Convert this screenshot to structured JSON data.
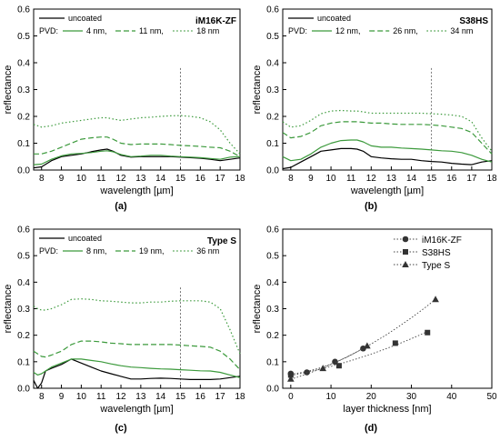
{
  "colors": {
    "uncoated": "#000000",
    "pvd": "#3c9a3c",
    "marker_series": "#333333",
    "guide_line": "#555555"
  },
  "chart_data": [
    {
      "id": "a",
      "type": "line",
      "panel_label": "(a)",
      "title": "iM16K-ZF",
      "xlabel": "wavelength [µm]",
      "ylabel": "reflectance",
      "xlim": [
        7.6,
        18
      ],
      "ylim": [
        0,
        0.6
      ],
      "xticks": [
        "8",
        "9",
        "10",
        "11",
        "12",
        "13",
        "14",
        "15",
        "16",
        "17",
        "18"
      ],
      "yticks": [
        "0.0",
        "0.1",
        "0.2",
        "0.3",
        "0.4",
        "0.5",
        "0.6"
      ],
      "grid": false,
      "legend_position": "top-left",
      "legend": {
        "uncoated": "uncoated",
        "pvd_prefix": "PVD:",
        "pvd_labels": [
          "4 nm,",
          "11 nm,",
          "18 nm"
        ]
      },
      "vline_x": 15,
      "x": [
        7.6,
        8.0,
        8.5,
        9.0,
        9.5,
        10.0,
        10.5,
        11.0,
        11.3,
        11.6,
        12.0,
        12.5,
        13.0,
        13.5,
        14.0,
        14.5,
        15.0,
        15.5,
        16.0,
        16.5,
        17.0,
        17.5,
        18.0
      ],
      "series": [
        {
          "name": "uncoated",
          "style": "solid",
          "color": "#000000",
          "values": [
            0.008,
            0.012,
            0.035,
            0.05,
            0.055,
            0.06,
            0.068,
            0.075,
            0.078,
            0.07,
            0.055,
            0.048,
            0.05,
            0.05,
            0.05,
            0.05,
            0.048,
            0.046,
            0.044,
            0.04,
            0.035,
            0.04,
            0.045
          ]
        },
        {
          "name": "4 nm",
          "style": "solid",
          "color": "#3c9a3c",
          "values": [
            0.02,
            0.022,
            0.04,
            0.053,
            0.06,
            0.062,
            0.065,
            0.07,
            0.072,
            0.068,
            0.058,
            0.05,
            0.052,
            0.055,
            0.055,
            0.052,
            0.05,
            0.048,
            0.046,
            0.043,
            0.04,
            0.048,
            0.05
          ]
        },
        {
          "name": "11 nm",
          "style": "dashed",
          "color": "#3c9a3c",
          "values": [
            0.06,
            0.06,
            0.07,
            0.085,
            0.1,
            0.115,
            0.12,
            0.123,
            0.123,
            0.115,
            0.1,
            0.095,
            0.097,
            0.097,
            0.097,
            0.095,
            0.092,
            0.09,
            0.088,
            0.085,
            0.083,
            0.07,
            0.05
          ]
        },
        {
          "name": "18 nm",
          "style": "dotted",
          "color": "#3c9a3c",
          "values": [
            0.17,
            0.16,
            0.165,
            0.175,
            0.18,
            0.185,
            0.19,
            0.195,
            0.195,
            0.19,
            0.185,
            0.19,
            0.195,
            0.197,
            0.2,
            0.202,
            0.203,
            0.2,
            0.195,
            0.18,
            0.15,
            0.1,
            0.06
          ]
        }
      ]
    },
    {
      "id": "b",
      "type": "line",
      "panel_label": "(b)",
      "title": "S38HS",
      "xlabel": "wavelength [µm]",
      "ylabel": "reflectance",
      "xlim": [
        7.6,
        18
      ],
      "ylim": [
        0,
        0.6
      ],
      "xticks": [
        "8",
        "9",
        "10",
        "11",
        "12",
        "13",
        "14",
        "15",
        "16",
        "17",
        "18"
      ],
      "yticks": [
        "0.0",
        "0.1",
        "0.2",
        "0.3",
        "0.4",
        "0.5",
        "0.6"
      ],
      "grid": false,
      "legend_position": "top-left",
      "legend": {
        "uncoated": "uncoated",
        "pvd_prefix": "PVD:",
        "pvd_labels": [
          "12 nm,",
          "26 nm,",
          "34 nm"
        ]
      },
      "vline_x": 15,
      "x": [
        7.6,
        8.0,
        8.5,
        9.0,
        9.5,
        10.0,
        10.5,
        11.0,
        11.3,
        11.6,
        12.0,
        12.5,
        13.0,
        13.5,
        14.0,
        14.5,
        15.0,
        15.5,
        16.0,
        16.5,
        17.0,
        17.5,
        18.0
      ],
      "series": [
        {
          "name": "uncoated",
          "style": "solid",
          "color": "#000000",
          "values": [
            0.005,
            0.01,
            0.03,
            0.05,
            0.07,
            0.075,
            0.08,
            0.08,
            0.078,
            0.07,
            0.05,
            0.045,
            0.042,
            0.04,
            0.04,
            0.035,
            0.032,
            0.03,
            0.025,
            0.022,
            0.02,
            0.03,
            0.035
          ]
        },
        {
          "name": "12 nm",
          "style": "solid",
          "color": "#3c9a3c",
          "values": [
            0.05,
            0.035,
            0.04,
            0.06,
            0.085,
            0.1,
            0.11,
            0.112,
            0.112,
            0.105,
            0.09,
            0.085,
            0.085,
            0.082,
            0.08,
            0.078,
            0.075,
            0.072,
            0.07,
            0.065,
            0.055,
            0.04,
            0.03
          ]
        },
        {
          "name": "26 nm",
          "style": "dashed",
          "color": "#3c9a3c",
          "values": [
            0.14,
            0.12,
            0.125,
            0.14,
            0.165,
            0.175,
            0.18,
            0.18,
            0.18,
            0.178,
            0.175,
            0.175,
            0.172,
            0.17,
            0.17,
            0.17,
            0.168,
            0.165,
            0.16,
            0.155,
            0.14,
            0.1,
            0.06
          ]
        },
        {
          "name": "34 nm",
          "style": "dotted",
          "color": "#3c9a3c",
          "values": [
            0.18,
            0.16,
            0.165,
            0.185,
            0.21,
            0.22,
            0.222,
            0.22,
            0.22,
            0.217,
            0.212,
            0.212,
            0.212,
            0.212,
            0.212,
            0.212,
            0.21,
            0.208,
            0.205,
            0.2,
            0.18,
            0.12,
            0.07
          ]
        }
      ]
    },
    {
      "id": "c",
      "type": "line",
      "panel_label": "(c)",
      "title": "Type S",
      "xlabel": "wavelength [µm]",
      "ylabel": "reflectance",
      "xlim": [
        7.6,
        18
      ],
      "ylim": [
        0,
        0.6
      ],
      "xticks": [
        "8",
        "9",
        "10",
        "11",
        "12",
        "13",
        "14",
        "15",
        "16",
        "17",
        "18"
      ],
      "yticks": [
        "0.0",
        "0.1",
        "0.2",
        "0.3",
        "0.4",
        "0.5",
        "0.6"
      ],
      "grid": false,
      "legend_position": "top-left",
      "legend": {
        "uncoated": "uncoated",
        "pvd_prefix": "PVD:",
        "pvd_labels": [
          "8 nm,",
          "19 nm,",
          "36 nm"
        ]
      },
      "vline_x": 15,
      "x": [
        7.6,
        7.8,
        8.0,
        8.2,
        8.5,
        9.0,
        9.5,
        10.0,
        10.5,
        11.0,
        11.5,
        12.0,
        12.5,
        13.0,
        13.5,
        14.0,
        14.5,
        15.0,
        15.5,
        16.0,
        16.5,
        17.0,
        17.5,
        18.0
      ],
      "series": [
        {
          "name": "uncoated",
          "style": "solid",
          "color": "#000000",
          "values": [
            0.03,
            0.0,
            0.02,
            0.065,
            0.075,
            0.09,
            0.11,
            0.095,
            0.08,
            0.065,
            0.055,
            0.045,
            0.035,
            0.035,
            0.037,
            0.038,
            0.037,
            0.035,
            0.033,
            0.033,
            0.033,
            0.035,
            0.04,
            0.045
          ]
        },
        {
          "name": "8 nm",
          "style": "solid",
          "color": "#3c9a3c",
          "values": [
            0.06,
            0.05,
            0.055,
            0.065,
            0.08,
            0.095,
            0.11,
            0.11,
            0.105,
            0.1,
            0.092,
            0.085,
            0.08,
            0.078,
            0.075,
            0.073,
            0.072,
            0.07,
            0.068,
            0.066,
            0.065,
            0.06,
            0.05,
            0.04
          ]
        },
        {
          "name": "19 nm",
          "style": "dashed",
          "color": "#3c9a3c",
          "values": [
            0.14,
            0.13,
            0.12,
            0.118,
            0.125,
            0.14,
            0.165,
            0.178,
            0.178,
            0.175,
            0.17,
            0.168,
            0.165,
            0.165,
            0.165,
            0.165,
            0.165,
            0.163,
            0.16,
            0.158,
            0.155,
            0.14,
            0.11,
            0.07
          ]
        },
        {
          "name": "36 nm",
          "style": "dotted",
          "color": "#3c9a3c",
          "values": [
            0.31,
            0.3,
            0.295,
            0.295,
            0.3,
            0.315,
            0.335,
            0.337,
            0.335,
            0.33,
            0.328,
            0.325,
            0.322,
            0.322,
            0.325,
            0.325,
            0.328,
            0.33,
            0.33,
            0.33,
            0.325,
            0.3,
            0.22,
            0.13
          ]
        }
      ]
    },
    {
      "id": "d",
      "type": "scatter",
      "panel_label": "(d)",
      "title": "",
      "xlabel": "layer thickness [nm]",
      "ylabel": "reflectance",
      "xlim": [
        -2,
        50
      ],
      "ylim": [
        0,
        0.6
      ],
      "xticks": [
        "0",
        "10",
        "20",
        "30",
        "40",
        "50"
      ],
      "yticks": [
        "0.0",
        "0.1",
        "0.2",
        "0.3",
        "0.4",
        "0.5",
        "0.6"
      ],
      "grid": false,
      "legend_position": "top-right",
      "series": [
        {
          "name": "iM16K-ZF",
          "marker": "circle",
          "x": [
            0,
            4,
            11,
            18
          ],
          "values": [
            0.055,
            0.06,
            0.1,
            0.15
          ]
        },
        {
          "name": "S38HS",
          "marker": "square",
          "x": [
            0,
            12,
            26,
            34
          ],
          "values": [
            0.05,
            0.085,
            0.17,
            0.21
          ]
        },
        {
          "name": "Type S",
          "marker": "triangle",
          "x": [
            0,
            8,
            19,
            36
          ],
          "values": [
            0.035,
            0.075,
            0.16,
            0.335
          ]
        }
      ]
    }
  ]
}
